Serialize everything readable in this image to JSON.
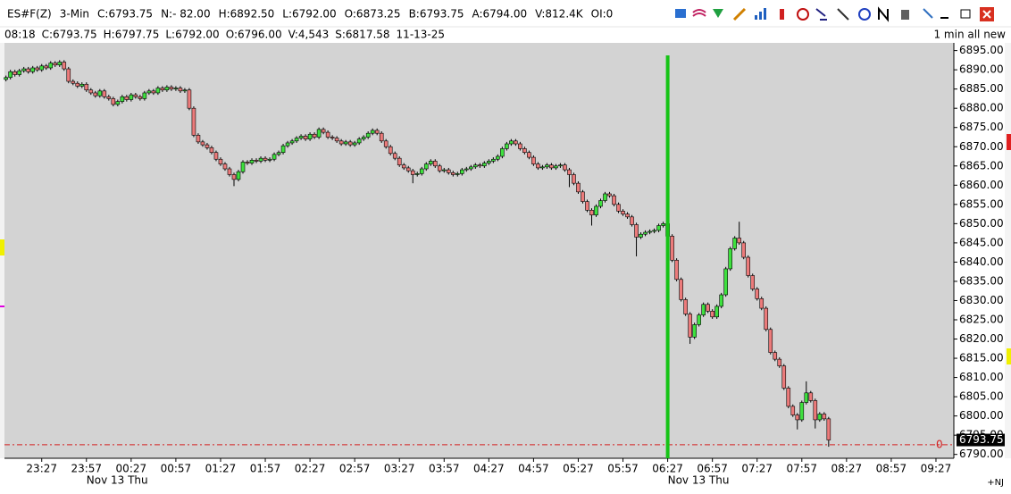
{
  "header": {
    "line1": [
      "ES#F(Z)",
      "3-Min",
      "C:6793.75",
      "N:- 82.00",
      "H:6892.50",
      "L:6792.00",
      "O:6873.25",
      "B:6793.75",
      "A:6794.00",
      "V:812.4K",
      "OI:0"
    ],
    "line2": [
      "08:18",
      "C:6793.75",
      "H:6797.75",
      "L:6792.00",
      "O:6796.00",
      "V:4,543",
      "S:6817.58",
      "11-13-25"
    ],
    "right_note": "1 min all new"
  },
  "footer_note": "+NJ",
  "chart_data": {
    "type": "candlestick",
    "colors": {
      "up": "#3ee03e",
      "down": "#ec7b7b"
    },
    "x": [
      -24,
      -21,
      -18,
      -15,
      -12,
      -9,
      -6,
      -3,
      0,
      3,
      6,
      9,
      12,
      15,
      18,
      21,
      24,
      27,
      30,
      33,
      36,
      39,
      42,
      45,
      48,
      51,
      54,
      57,
      60,
      63,
      66,
      69,
      72,
      75,
      78,
      81,
      84,
      87,
      90,
      93,
      96,
      99,
      102,
      105,
      108,
      111,
      114,
      117,
      120,
      123,
      126,
      129,
      132,
      135,
      138,
      141,
      144,
      147,
      150,
      153,
      156,
      159,
      162,
      165,
      168,
      171,
      174,
      177,
      180,
      183,
      186,
      189,
      192,
      195,
      198,
      201,
      204,
      207,
      210,
      213,
      216,
      219,
      222,
      225,
      228,
      231,
      234,
      237,
      240,
      243,
      246,
      249,
      252,
      255,
      258,
      261,
      264,
      267,
      270,
      273,
      276,
      279,
      282,
      285,
      288,
      291,
      294,
      297,
      300,
      303,
      306,
      309,
      312,
      315,
      318,
      321,
      324,
      327,
      330,
      333,
      336,
      339,
      342,
      345,
      348,
      351,
      354,
      357,
      360,
      363,
      366,
      369,
      372,
      375,
      378,
      381,
      384,
      387,
      390,
      393,
      396,
      399,
      402,
      405,
      408,
      411,
      414,
      417,
      420,
      423,
      426,
      429,
      432,
      435,
      438,
      441,
      444,
      447,
      450,
      453,
      456,
      459,
      462,
      465,
      468,
      471,
      474,
      477,
      480,
      483,
      486,
      489,
      492,
      495,
      498,
      501,
      504,
      507,
      510,
      513,
      516,
      519,
      522,
      525,
      528
    ],
    "open": [
      6887.5,
      6888,
      6889.5,
      6888.75,
      6889.75,
      6890.25,
      6889.5,
      6890.5,
      6890,
      6891,
      6890.5,
      6891.75,
      6891.25,
      6892,
      6890.25,
      6887,
      6886.5,
      6885.75,
      6886.25,
      6884.75,
      6884,
      6883.25,
      6884.5,
      6883,
      6882.5,
      6881,
      6881.75,
      6883,
      6882.25,
      6883.5,
      6883,
      6882.5,
      6884,
      6884.5,
      6884,
      6885.25,
      6884.75,
      6885.5,
      6885,
      6885.25,
      6884.5,
      6884.75,
      6880,
      6873,
      6871.25,
      6870.5,
      6869.75,
      6868.5,
      6866.75,
      6865.5,
      6864.25,
      6862.75,
      6861.5,
      6863.5,
      6866,
      6865.75,
      6866.5,
      6866.25,
      6867,
      6866.5,
      6866.75,
      6868,
      6868.5,
      6870.25,
      6871,
      6871.5,
      6872.25,
      6872.75,
      6872,
      6873.25,
      6872.5,
      6874.5,
      6873.75,
      6872.5,
      6872.25,
      6871.5,
      6870.75,
      6871.25,
      6870.5,
      6871,
      6872,
      6872.5,
      6873.5,
      6874.25,
      6873.5,
      6871.5,
      6870,
      6868.25,
      6867,
      6865.25,
      6864.5,
      6863.75,
      6862.75,
      6863,
      6864.25,
      6865.5,
      6866.25,
      6865,
      6863.75,
      6864,
      6863.25,
      6862.75,
      6863,
      6864,
      6864.25,
      6864.75,
      6865.25,
      6865,
      6865.75,
      6866.25,
      6866.75,
      6867.5,
      6869.5,
      6870.75,
      6871.5,
      6870.75,
      6869.5,
      6868.5,
      6867.25,
      6865.5,
      6864.5,
      6864.75,
      6865.25,
      6864.5,
      6865,
      6865.25,
      6864,
      6862.75,
      6860.5,
      6858.25,
      6855.75,
      6853.5,
      6852.25,
      6854.5,
      6856,
      6857.75,
      6857.25,
      6855,
      6853.25,
      6852.5,
      6851.75,
      6849.75,
      6846.5,
      6847.25,
      6847.75,
      6848,
      6848.25,
      6849.5,
      6850,
      6846.75,
      6840.5,
      6835.5,
      6830.25,
      6826.5,
      6820.5,
      6823.75,
      6826.25,
      6829,
      6827.25,
      6825.75,
      6828.5,
      6831.5,
      6838.25,
      6843.5,
      6846.25,
      6845,
      6841.25,
      6836.5,
      6833,
      6830.5,
      6828,
      6822.5,
      6816.5,
      6814.75,
      6813,
      6807.25,
      6802.5,
      6800.25,
      6799,
      6803.5,
      6806,
      6804,
      6799,
      6800.5,
      6799.25
    ],
    "high": [
      6888.5,
      6890,
      6890,
      6890.25,
      6890.75,
      6890.75,
      6891,
      6891,
      6891.5,
      6891.5,
      6892.25,
      6892.25,
      6892.5,
      6892.5,
      6890.75,
      6887.5,
      6887,
      6886.75,
      6886.75,
      6885.25,
      6884.5,
      6885,
      6885,
      6883.5,
      6883,
      6882.25,
      6883.5,
      6883.5,
      6884,
      6884,
      6883.5,
      6884.5,
      6885,
      6885,
      6885.75,
      6885.75,
      6886,
      6886,
      6885.75,
      6885.75,
      6885.25,
      6885.25,
      6880.5,
      6873.5,
      6871.75,
      6871,
      6870.25,
      6869,
      6867.25,
      6866,
      6864.75,
      6863.25,
      6864,
      6866.5,
      6866.5,
      6867,
      6867,
      6867.5,
      6867.5,
      6867.25,
      6868.5,
      6869,
      6870.75,
      6871.5,
      6872,
      6872.75,
      6873.25,
      6873.25,
      6873.75,
      6873.75,
      6875,
      6875,
      6874.25,
      6873,
      6872.75,
      6872,
      6871.75,
      6871.75,
      6871.5,
      6872.5,
      6873,
      6874,
      6874.75,
      6874.75,
      6874,
      6872,
      6870.5,
      6868.75,
      6867.5,
      6865.75,
      6865,
      6864.25,
      6863.5,
      6864.75,
      6866,
      6866.75,
      6866.75,
      6865.5,
      6864.5,
      6864.5,
      6863.75,
      6863.5,
      6864.5,
      6864.75,
      6865.25,
      6865.75,
      6865.75,
      6866.25,
      6866.75,
      6867.25,
      6868,
      6870,
      6871.25,
      6872,
      6872,
      6871.25,
      6870,
      6869,
      6867.75,
      6866,
      6865.25,
      6865.75,
      6865.75,
      6865.5,
      6865.75,
      6865.75,
      6864.5,
      6863.25,
      6861,
      6858.75,
      6856.25,
      6854,
      6855,
      6856.5,
      6858.25,
      6858.25,
      6857.75,
      6855.5,
      6853.75,
      6853,
      6852.25,
      6850.25,
      6847.75,
      6848.25,
      6848.5,
      6848.75,
      6850,
      6850.5,
      6850.5,
      6847.25,
      6841,
      6836,
      6830.75,
      6827,
      6824.25,
      6826.75,
      6829.5,
      6829.5,
      6827.75,
      6829,
      6832,
      6838.75,
      6844,
      6846.75,
      6850.5,
      6845.5,
      6841.75,
      6837,
      6833.5,
      6831,
      6828.5,
      6823,
      6817,
      6815.25,
      6813.5,
      6807.75,
      6803,
      6800.75,
      6804,
      6809,
      6806.5,
      6804.5,
      6801,
      6801,
      6799.75
    ],
    "low": [
      6887,
      6887.5,
      6888.25,
      6888.25,
      6889.25,
      6889,
      6889,
      6889.5,
      6889.5,
      6890,
      6890,
      6890.75,
      6890.75,
      6889.75,
      6886.5,
      6886,
      6885.25,
      6885.25,
      6884.25,
      6883.5,
      6882.75,
      6882.75,
      6882.5,
      6882,
      6880.5,
      6880.5,
      6881.25,
      6881.75,
      6881.75,
      6882.5,
      6882,
      6882,
      6883.5,
      6883.5,
      6883.5,
      6884.25,
      6884.25,
      6884.5,
      6884.5,
      6884,
      6884,
      6879.5,
      6872.5,
      6870.75,
      6870,
      6869.25,
      6868,
      6866.25,
      6865,
      6863.75,
      6862.25,
      6859.75,
      6861,
      6863,
      6865.25,
      6865.25,
      6865.75,
      6865.75,
      6866,
      6866,
      6866.25,
      6867.5,
      6868,
      6869.75,
      6870.5,
      6871,
      6871.75,
      6871.5,
      6871.5,
      6872,
      6872,
      6873.25,
      6872,
      6871.75,
      6871,
      6870.25,
      6870.25,
      6870,
      6870,
      6870.5,
      6871.5,
      6872,
      6873,
      6873,
      6871,
      6869.5,
      6867.75,
      6866.5,
      6864.75,
      6864,
      6863.25,
      6860.5,
      6862.25,
      6862.5,
      6863.75,
      6865,
      6864.5,
      6863.25,
      6863.25,
      6862.75,
      6862.25,
      6862.25,
      6862.5,
      6863.5,
      6863.75,
      6864.25,
      6864.5,
      6864.5,
      6865.25,
      6865.75,
      6866.25,
      6867,
      6869,
      6870.25,
      6870.25,
      6869,
      6868,
      6866.75,
      6865,
      6864,
      6864,
      6864.25,
      6864,
      6864,
      6864.5,
      6863.5,
      6859.5,
      6860,
      6857.75,
      6855.25,
      6853,
      6849.5,
      6851.75,
      6854,
      6855.5,
      6856.75,
      6854.5,
      6852.75,
      6852,
      6851.25,
      6849.25,
      6841.5,
      6846,
      6846.75,
      6847.25,
      6847.5,
      6847.75,
      6849,
      6846.25,
      6840,
      6835,
      6829.75,
      6826,
      6818.75,
      6820,
      6823.25,
      6825.75,
      6826.75,
      6825.25,
      6825.25,
      6828,
      6831,
      6837.75,
      6843,
      6844.5,
      6840.75,
      6836,
      6832.5,
      6830,
      6827.5,
      6822,
      6816,
      6814.25,
      6812.5,
      6806.75,
      6802,
      6799.75,
      6796.5,
      6798.5,
      6803,
      6803.5,
      6796.75,
      6798.5,
      6798.75,
      6792
    ],
    "close": [
      6888,
      6889.5,
      6888.75,
      6889.75,
      6890.25,
      6889.5,
      6890.5,
      6890,
      6891,
      6890.5,
      6891.75,
      6891.25,
      6892,
      6890.25,
      6887,
      6886.5,
      6885.75,
      6886.25,
      6884.75,
      6884,
      6883.25,
      6884.5,
      6883,
      6882.5,
      6881,
      6881.75,
      6883,
      6882.25,
      6883.5,
      6883,
      6882.5,
      6884,
      6884.5,
      6884,
      6885.25,
      6884.75,
      6885.5,
      6885,
      6885.25,
      6884.5,
      6884.75,
      6880,
      6873,
      6871.25,
      6870.5,
      6869.75,
      6868.5,
      6866.75,
      6865.5,
      6864.25,
      6862.75,
      6861.5,
      6863.5,
      6866,
      6865.75,
      6866.5,
      6866.25,
      6867,
      6866.5,
      6866.75,
      6868,
      6868.5,
      6870.25,
      6871,
      6871.5,
      6872.25,
      6872.75,
      6872,
      6873.25,
      6872.5,
      6874.5,
      6873.75,
      6872.5,
      6872.25,
      6871.5,
      6870.75,
      6871.25,
      6870.5,
      6871,
      6872,
      6872.5,
      6873.5,
      6874.25,
      6873.5,
      6871.5,
      6870,
      6868.25,
      6867,
      6865.25,
      6864.5,
      6863.75,
      6862.75,
      6863,
      6864.25,
      6865.5,
      6866.25,
      6865,
      6863.75,
      6864,
      6863.25,
      6862.75,
      6863,
      6864,
      6864.25,
      6864.75,
      6865.25,
      6865,
      6865.75,
      6866.25,
      6866.75,
      6867.5,
      6869.5,
      6870.75,
      6871.5,
      6870.75,
      6869.5,
      6868.5,
      6867.25,
      6865.5,
      6864.5,
      6864.75,
      6865.25,
      6864.5,
      6865,
      6865.25,
      6864,
      6862.75,
      6860.5,
      6858.25,
      6855.75,
      6853.5,
      6852.25,
      6854.5,
      6856,
      6857.75,
      6857.25,
      6855,
      6853.25,
      6852.5,
      6851.75,
      6849.75,
      6846.5,
      6847.25,
      6847.75,
      6848,
      6848.25,
      6849.5,
      6850,
      6846.75,
      6840.5,
      6835.5,
      6830.25,
      6826.5,
      6820.5,
      6823.75,
      6826.25,
      6829,
      6827.25,
      6825.75,
      6828.5,
      6831.5,
      6838.25,
      6843.5,
      6846.25,
      6845,
      6841.25,
      6836.5,
      6833,
      6830.5,
      6828,
      6822.5,
      6816.5,
      6814.75,
      6813,
      6807.25,
      6802.5,
      6800.25,
      6799,
      6803.5,
      6806,
      6804,
      6799,
      6800.5,
      6799.25,
      6793.75
    ],
    "xlim": [
      -25,
      612
    ],
    "xticks": [
      {
        "value": 0,
        "label": "23:27"
      },
      {
        "value": 30,
        "label": "23:57"
      },
      {
        "value": 60,
        "label": "00:27"
      },
      {
        "value": 90,
        "label": "00:57"
      },
      {
        "value": 120,
        "label": "01:27"
      },
      {
        "value": 150,
        "label": "01:57"
      },
      {
        "value": 180,
        "label": "02:27"
      },
      {
        "value": 210,
        "label": "02:57"
      },
      {
        "value": 240,
        "label": "03:27"
      },
      {
        "value": 270,
        "label": "03:57"
      },
      {
        "value": 300,
        "label": "04:27"
      },
      {
        "value": 330,
        "label": "04:57"
      },
      {
        "value": 360,
        "label": "05:27"
      },
      {
        "value": 390,
        "label": "05:57"
      },
      {
        "value": 420,
        "label": "06:27"
      },
      {
        "value": 450,
        "label": "06:57"
      },
      {
        "value": 480,
        "label": "07:27"
      },
      {
        "value": 510,
        "label": "07:57"
      },
      {
        "value": 540,
        "label": "08:27"
      },
      {
        "value": 570,
        "label": "08:57"
      },
      {
        "value": 600,
        "label": "09:27"
      }
    ],
    "date_labels": [
      {
        "value": 30,
        "label": "Nov 13 Thu"
      },
      {
        "value": 420,
        "label": "Nov 13 Thu"
      }
    ],
    "ylim": [
      6789,
      6897
    ],
    "yticks": [
      {
        "value": 6790,
        "label": "6790.00"
      },
      {
        "value": 6795,
        "label": "6795.00"
      },
      {
        "value": 6800,
        "label": "6800.00"
      },
      {
        "value": 6805,
        "label": "6805.00"
      },
      {
        "value": 6810,
        "label": "6810.00"
      },
      {
        "value": 6815,
        "label": "6815.00"
      },
      {
        "value": 6820,
        "label": "6820.00"
      },
      {
        "value": 6825,
        "label": "6825.00"
      },
      {
        "value": 6830,
        "label": "6830.00"
      },
      {
        "value": 6835,
        "label": "6835.00"
      },
      {
        "value": 6840,
        "label": "6840.00"
      },
      {
        "value": 6845,
        "label": "6845.00"
      },
      {
        "value": 6850,
        "label": "6850.00"
      },
      {
        "value": 6855,
        "label": "6855.00"
      },
      {
        "value": 6860,
        "label": "6860.00"
      },
      {
        "value": 6865,
        "label": "6865.00"
      },
      {
        "value": 6870,
        "label": "6870.00"
      },
      {
        "value": 6875,
        "label": "6875.00"
      },
      {
        "value": 6880,
        "label": "6880.00"
      },
      {
        "value": 6885,
        "label": "6885.00"
      },
      {
        "value": 6890,
        "label": "6890.00"
      },
      {
        "value": 6895,
        "label": "6895.00"
      }
    ],
    "vline": {
      "x": 420,
      "color": "#16c416"
    },
    "reference_line": {
      "value": 6792.5,
      "label": "0",
      "color": "#d42020"
    },
    "price_marker": {
      "value": 6793.75,
      "label": "6793.75"
    }
  }
}
